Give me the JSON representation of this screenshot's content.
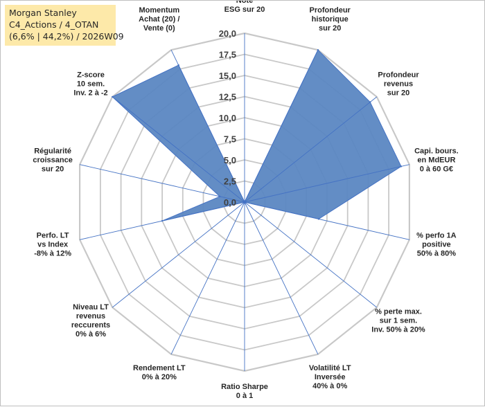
{
  "infobox": {
    "line1": "Morgan Stanley",
    "line2": "C4_Actions / 4_OTAN",
    "line3": "(6,6% | 44,2%) / 2026W09"
  },
  "chart_data": {
    "type": "radar",
    "title": "",
    "rmin": 0,
    "rmax": 20,
    "ticks": [
      "0,0",
      "2,5",
      "5,0",
      "7,5",
      "10,0",
      "12,5",
      "15,0",
      "17,5",
      "20,0"
    ],
    "tick_values": [
      0,
      2.5,
      5,
      7.5,
      10,
      12.5,
      15,
      17.5,
      20
    ],
    "axes": [
      {
        "label": [
          "Note",
          "ESG sur 20"
        ],
        "value": 0
      },
      {
        "label": [
          "Profondeur",
          "historique",
          "sur 20"
        ],
        "value": 20
      },
      {
        "label": [
          "Profondeur",
          "revenus",
          "sur 20"
        ],
        "value": 19
      },
      {
        "label": [
          "Capi. bours.",
          "en MdEUR",
          "0 à 60 G€"
        ],
        "value": 19
      },
      {
        "label": [
          "% perfo 1A",
          "positive",
          "50% à 80%"
        ],
        "value": 9
      },
      {
        "label": [
          "% perte max.",
          "sur 1 sem.",
          "Inv. 50% à 20%"
        ],
        "value": 0
      },
      {
        "label": [
          "Volatilité LT",
          "Inversée",
          "40% à 0%"
        ],
        "value": 0
      },
      {
        "label": [
          "Ratio Sharpe",
          "0 à 1"
        ],
        "value": 0
      },
      {
        "label": [
          "Rendement LT",
          "0% à 20%"
        ],
        "value": 0
      },
      {
        "label": [
          "Niveau LT",
          "revenus",
          "reccurents",
          "0% à 6%"
        ],
        "value": 0
      },
      {
        "label": [
          "Perfo. LT",
          "vs Index",
          "-8% à 12%"
        ],
        "value": 10
      },
      {
        "label": [
          "Régularité",
          "croissance",
          "sur 20"
        ],
        "value": 3
      },
      {
        "label": [
          "Z-score",
          "10 sem.",
          "Inv. 2 à -2"
        ],
        "value": 20
      },
      {
        "label": [
          "Momentum",
          "Achat (20) /",
          "Vente (0)"
        ],
        "value": 18
      }
    ],
    "colors": {
      "fill": "#5b87c2",
      "stroke": "#4472c4",
      "grid": "#c8c8c8",
      "spoke": "#4472c4"
    }
  }
}
